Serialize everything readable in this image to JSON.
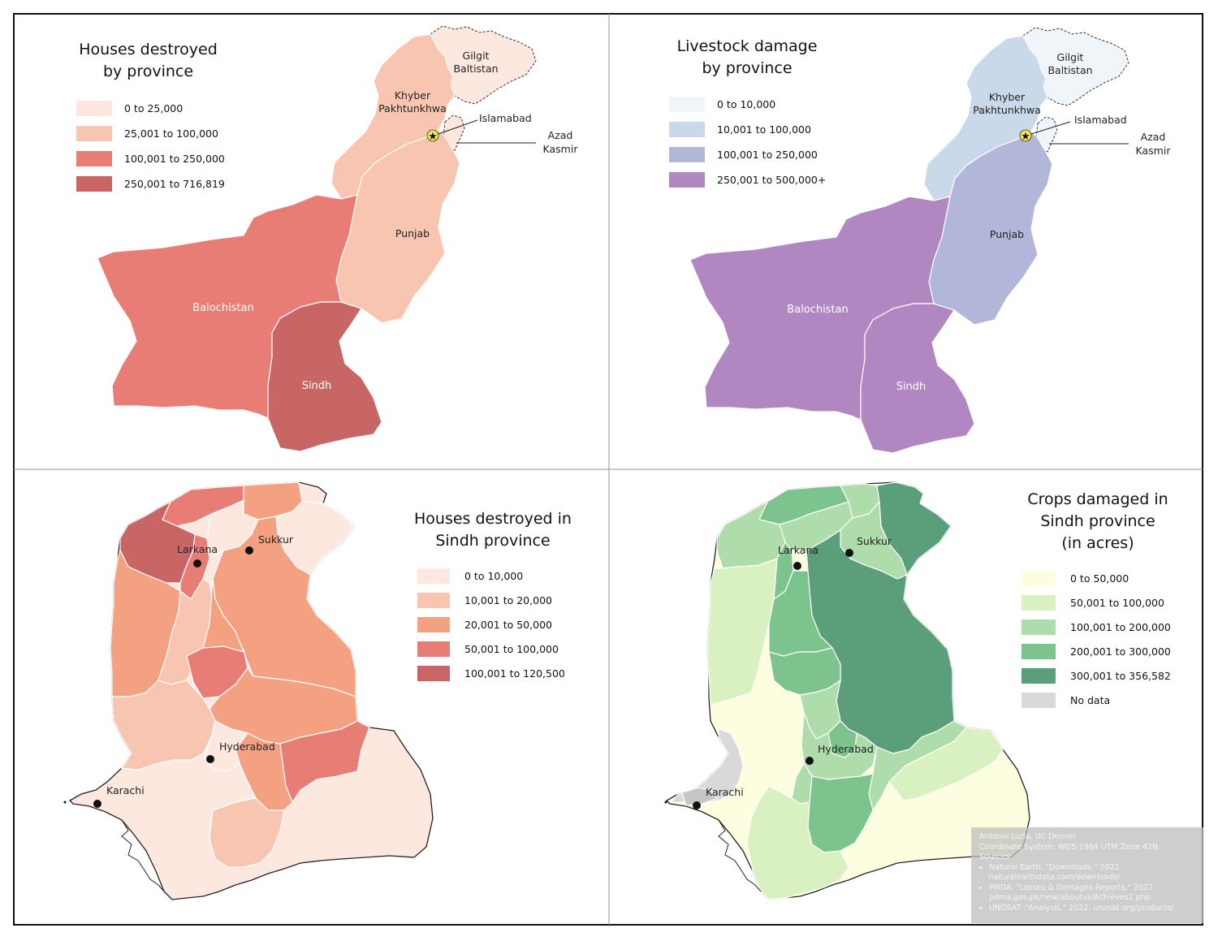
{
  "panels": {
    "houses_by_province": {
      "title_line1": "Houses destroyed",
      "title_line2": "by province",
      "legend": [
        {
          "label": "0 to 25,000",
          "color": "#fce8df"
        },
        {
          "label": "25,001 to 100,000",
          "color": "#f8c5b0"
        },
        {
          "label": "100,001 to 250,000",
          "color": "#e77d75"
        },
        {
          "label": "250,001 to 716,819",
          "color": "#c86565"
        }
      ],
      "labels": {
        "gilgit_1": "Gilgit",
        "gilgit_2": "Baltistan",
        "khyber_1": "Khyber",
        "khyber_2": "Pakhtunkhwa",
        "islamabad": "Islamabad",
        "azad_1": "Azad",
        "azad_2": "Kasmir",
        "punjab": "Punjab",
        "balochistan": "Balochistan",
        "sindh": "Sindh"
      }
    },
    "livestock_by_province": {
      "title_line1": "Livestock damage",
      "title_line2": "by province",
      "legend": [
        {
          "label": "0 to 10,000",
          "color": "#f0f5f9"
        },
        {
          "label": "10,001 to 100,000",
          "color": "#c9d9ea"
        },
        {
          "label": "100,001 to 250,000",
          "color": "#b2b6d8"
        },
        {
          "label": "250,001 to 500,000+",
          "color": "#b087c0"
        }
      ],
      "labels": {
        "gilgit_1": "Gilgit",
        "gilgit_2": "Baltistan",
        "khyber_1": "Khyber",
        "khyber_2": "Pakhtunkhwa",
        "islamabad": "Islamabad",
        "azad_1": "Azad",
        "azad_2": "Kasmir",
        "punjab": "Punjab",
        "balochistan": "Balochistan",
        "sindh": "Sindh"
      }
    },
    "houses_sindh": {
      "title_line1": "Houses destroyed in",
      "title_line2": "Sindh province",
      "legend": [
        {
          "label": "0 to 10,000",
          "color": "#fce8df"
        },
        {
          "label": "10,001 to 20,000",
          "color": "#f8c5b0"
        },
        {
          "label": "20,001 to 50,000",
          "color": "#f4a182"
        },
        {
          "label": "50,001 to 100,000",
          "color": "#e77d75"
        },
        {
          "label": "100,001 to 120,500",
          "color": "#c86565"
        }
      ],
      "cities": {
        "larkana": "Larkana",
        "sukkur": "Sukkur",
        "hyderabad": "Hyderabad",
        "karachi": "Karachi"
      }
    },
    "crops_sindh": {
      "title_line1": "Crops damaged in",
      "title_line2": "Sindh province",
      "title_line3": "(in acres)",
      "legend": [
        {
          "label": "0 to 50,000",
          "color": "#fdfde0"
        },
        {
          "label": "50,001 to 100,000",
          "color": "#d9f0c1"
        },
        {
          "label": "100,001 to 200,000",
          "color": "#aedcaa"
        },
        {
          "label": "200,001 to 300,000",
          "color": "#7dc38e"
        },
        {
          "label": "300,001 to 356,582",
          "color": "#5a9e7a"
        },
        {
          "label": "No data",
          "color": "#d9d9d9"
        }
      ],
      "cities": {
        "larkana": "Larkana",
        "sukkur": "Sukkur",
        "hyderabad": "Hyderabad",
        "karachi": "Karachi"
      }
    }
  },
  "credits": {
    "author": "Antonio Luna, UC Denver",
    "coord": "Coordinate System: WGS 1984 UTM Zone 42N",
    "sources_label": "Sources:",
    "sources": [
      "Natural Earth. \"Downloads.\" 2022. naturalearthdata.com/downloads/",
      "PMDA. \"Losses & Damages Reports.\" 2022. pdma.gos.pk/new/aboutus/Achieves2.php",
      "UNOSAT. \"Analysis.\" 2022. unosat.org/products/"
    ]
  }
}
